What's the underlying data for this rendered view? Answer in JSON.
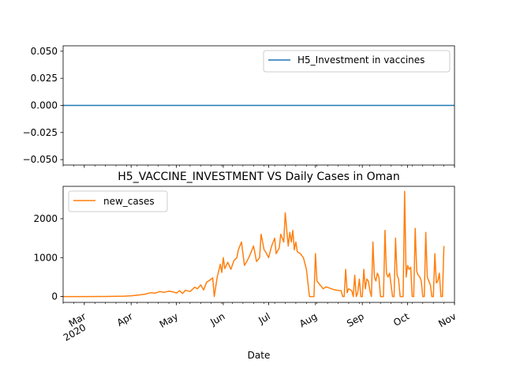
{
  "chart_data": [
    {
      "type": "line",
      "title": "",
      "xlabel": "",
      "ylabel": "",
      "ylim": [
        -0.055,
        0.055
      ],
      "yticks": [
        0.05,
        0.025,
        0.0,
        -0.025,
        -0.05
      ],
      "ytick_labels": [
        "0.050",
        "0.025",
        "0.000",
        "−0.025",
        "−0.050"
      ],
      "legend_position": "top-right",
      "series": [
        {
          "name": "H5_Investment in vaccines",
          "color": "#1f77b4",
          "x_start_day": 0,
          "x_end_day": 245,
          "constant_value": 0
        }
      ]
    },
    {
      "type": "line",
      "title": "H5_VACCINE_INVESTMENT VS Daily Cases in Oman",
      "xlabel": "Date",
      "ylabel": "",
      "ylim": [
        -150,
        2830
      ],
      "yticks": [
        0,
        1000,
        2000
      ],
      "ytick_labels": [
        "0",
        "1000",
        "2000"
      ],
      "legend_position": "top-left",
      "x_ticks": [
        {
          "label": "Mar",
          "sub": "2020",
          "day": 0
        },
        {
          "label": "Apr",
          "sub": "",
          "day": 31
        },
        {
          "label": "May",
          "sub": "",
          "day": 61
        },
        {
          "label": "Jun",
          "sub": "",
          "day": 92
        },
        {
          "label": "Jul",
          "sub": "",
          "day": 122
        },
        {
          "label": "Aug",
          "sub": "",
          "day": 153
        },
        {
          "label": "Sep",
          "sub": "",
          "day": 184
        },
        {
          "label": "Oct",
          "sub": "",
          "day": 214
        },
        {
          "label": "Nov",
          "sub": "",
          "day": 245
        }
      ],
      "x_range_days": [
        -14,
        245
      ],
      "series": [
        {
          "name": "new_cases",
          "color": "#ff7f0e",
          "points": [
            [
              -14,
              0
            ],
            [
              0,
              0
            ],
            [
              14,
              2
            ],
            [
              26,
              10
            ],
            [
              31,
              20
            ],
            [
              36,
              40
            ],
            [
              40,
              60
            ],
            [
              44,
              100
            ],
            [
              47,
              90
            ],
            [
              50,
              130
            ],
            [
              53,
              110
            ],
            [
              56,
              140
            ],
            [
              59,
              120
            ],
            [
              61,
              90
            ],
            [
              63,
              150
            ],
            [
              65,
              80
            ],
            [
              67,
              160
            ],
            [
              70,
              130
            ],
            [
              73,
              240
            ],
            [
              75,
              200
            ],
            [
              77,
              300
            ],
            [
              79,
              170
            ],
            [
              81,
              370
            ],
            [
              83,
              420
            ],
            [
              85,
              480
            ],
            [
              86,
              0
            ],
            [
              88,
              500
            ],
            [
              90,
              830
            ],
            [
              91,
              620
            ],
            [
              92,
              1000
            ],
            [
              93,
              720
            ],
            [
              95,
              880
            ],
            [
              97,
              700
            ],
            [
              99,
              920
            ],
            [
              101,
              1000
            ],
            [
              102,
              1200
            ],
            [
              104,
              1400
            ],
            [
              106,
              800
            ],
            [
              108,
              930
            ],
            [
              110,
              1100
            ],
            [
              112,
              1300
            ],
            [
              114,
              900
            ],
            [
              116,
              1000
            ],
            [
              117,
              1600
            ],
            [
              119,
              1200
            ],
            [
              120,
              1150
            ],
            [
              122,
              1000
            ],
            [
              124,
              1300
            ],
            [
              126,
              1500
            ],
            [
              127,
              1100
            ],
            [
              129,
              1250
            ],
            [
              130,
              1600
            ],
            [
              132,
              1400
            ],
            [
              133,
              2150
            ],
            [
              134,
              1700
            ],
            [
              135,
              1300
            ],
            [
              136,
              1650
            ],
            [
              137,
              1400
            ],
            [
              138,
              1700
            ],
            [
              139,
              1200
            ],
            [
              140,
              1400
            ],
            [
              141,
              1150
            ],
            [
              143,
              1100
            ],
            [
              145,
              1000
            ],
            [
              147,
              700
            ],
            [
              149,
              0
            ],
            [
              151,
              0
            ],
            [
              152,
              0
            ],
            [
              153,
              1100
            ],
            [
              154,
              400
            ],
            [
              156,
              300
            ],
            [
              158,
              200
            ],
            [
              160,
              250
            ],
            [
              162,
              220
            ],
            [
              165,
              180
            ],
            [
              168,
              160
            ],
            [
              170,
              150
            ],
            [
              171,
              0
            ],
            [
              172,
              0
            ],
            [
              173,
              700
            ],
            [
              174,
              100
            ],
            [
              175,
              200
            ],
            [
              177,
              150
            ],
            [
              178,
              0
            ],
            [
              179,
              550
            ],
            [
              180,
              0
            ],
            [
              181,
              100
            ],
            [
              182,
              450
            ],
            [
              183,
              0
            ],
            [
              184,
              0
            ],
            [
              185,
              700
            ],
            [
              186,
              200
            ],
            [
              187,
              450
            ],
            [
              188,
              400
            ],
            [
              189,
              150
            ],
            [
              190,
              0
            ],
            [
              191,
              1400
            ],
            [
              192,
              500
            ],
            [
              193,
              400
            ],
            [
              194,
              600
            ],
            [
              195,
              500
            ],
            [
              196,
              0
            ],
            [
              197,
              0
            ],
            [
              198,
              0
            ],
            [
              199,
              1700
            ],
            [
              200,
              600
            ],
            [
              201,
              500
            ],
            [
              202,
              600
            ],
            [
              203,
              300
            ],
            [
              204,
              0
            ],
            [
              205,
              0
            ],
            [
              206,
              1500
            ],
            [
              207,
              550
            ],
            [
              208,
              450
            ],
            [
              209,
              0
            ],
            [
              210,
              0
            ],
            [
              211,
              0
            ],
            [
              212,
              2700
            ],
            [
              213,
              500
            ],
            [
              214,
              800
            ],
            [
              215,
              700
            ],
            [
              216,
              750
            ],
            [
              217,
              0
            ],
            [
              218,
              0
            ],
            [
              219,
              1750
            ],
            [
              220,
              650
            ],
            [
              221,
              550
            ],
            [
              222,
              500
            ],
            [
              223,
              400
            ],
            [
              224,
              0
            ],
            [
              225,
              0
            ],
            [
              226,
              1650
            ],
            [
              227,
              500
            ],
            [
              228,
              400
            ],
            [
              229,
              300
            ],
            [
              230,
              0
            ],
            [
              231,
              0
            ],
            [
              232,
              1100
            ],
            [
              233,
              350
            ],
            [
              234,
              400
            ],
            [
              235,
              600
            ],
            [
              236,
              0
            ],
            [
              237,
              0
            ],
            [
              238,
              1300
            ]
          ]
        }
      ]
    }
  ]
}
